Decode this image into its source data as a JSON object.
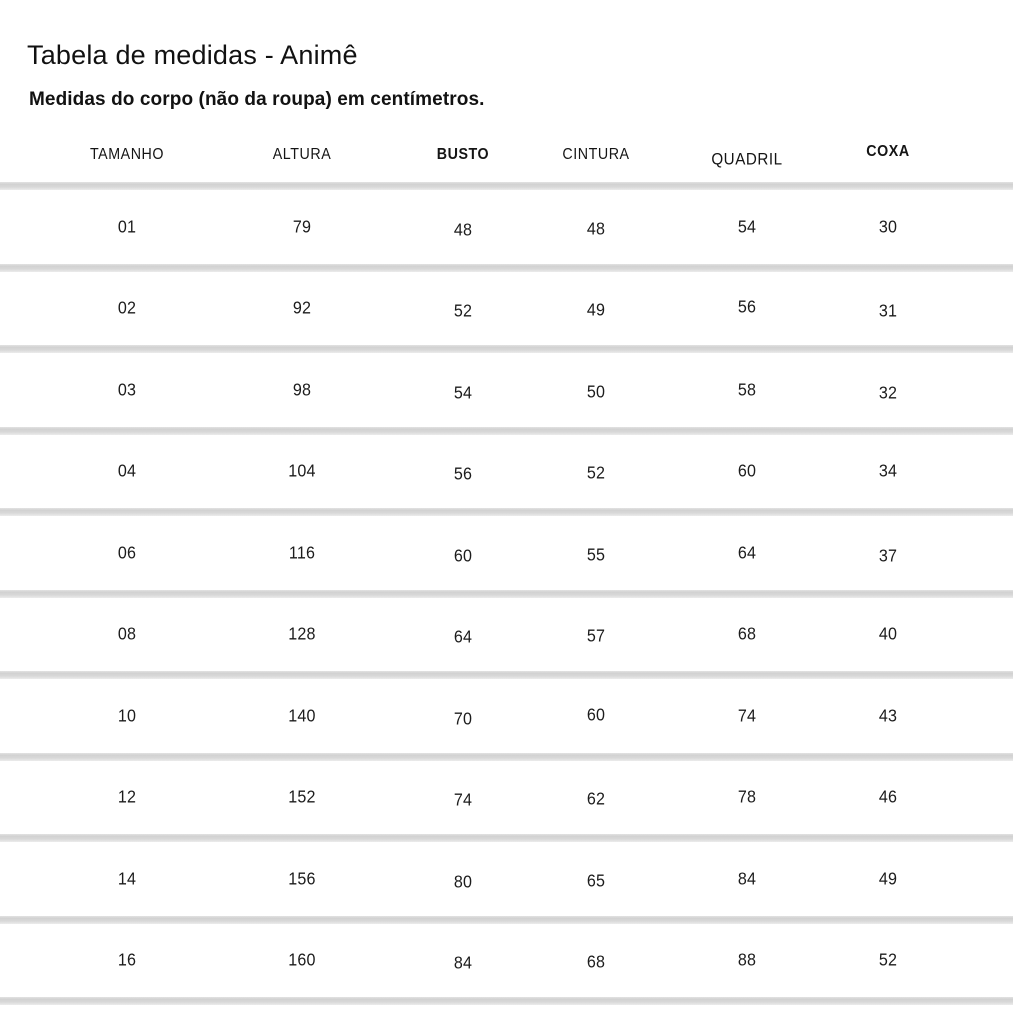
{
  "header": {
    "title": "Tabela de medidas - Animê",
    "subtitle": "Medidas do corpo (não da roupa) em centímetros."
  },
  "chart_data": {
    "type": "table",
    "title": "Tabela de medidas - Animê",
    "subtitle": "Medidas do corpo (não da roupa) em centímetros.",
    "units": "centímetros",
    "columns": [
      "TAMANHO",
      "ALTURA",
      "BUSTO",
      "CINTURA",
      "QUADRIL",
      "COXA"
    ],
    "rows": [
      [
        "01",
        "79",
        "48",
        "48",
        "54",
        "30"
      ],
      [
        "02",
        "92",
        "52",
        "49",
        "56",
        "31"
      ],
      [
        "03",
        "98",
        "54",
        "50",
        "58",
        "32"
      ],
      [
        "04",
        "104",
        "56",
        "52",
        "60",
        "34"
      ],
      [
        "06",
        "116",
        "60",
        "55",
        "64",
        "37"
      ],
      [
        "08",
        "128",
        "64",
        "57",
        "68",
        "40"
      ],
      [
        "10",
        "140",
        "70",
        "60",
        "74",
        "43"
      ],
      [
        "12",
        "152",
        "74",
        "62",
        "78",
        "46"
      ],
      [
        "14",
        "156",
        "80",
        "65",
        "84",
        "49"
      ],
      [
        "16",
        "160",
        "84",
        "68",
        "88",
        "52"
      ]
    ]
  },
  "styles": {
    "background": "#ffffff",
    "text_color": "#1a1a1a",
    "divider_color": "#d5d5d5"
  }
}
